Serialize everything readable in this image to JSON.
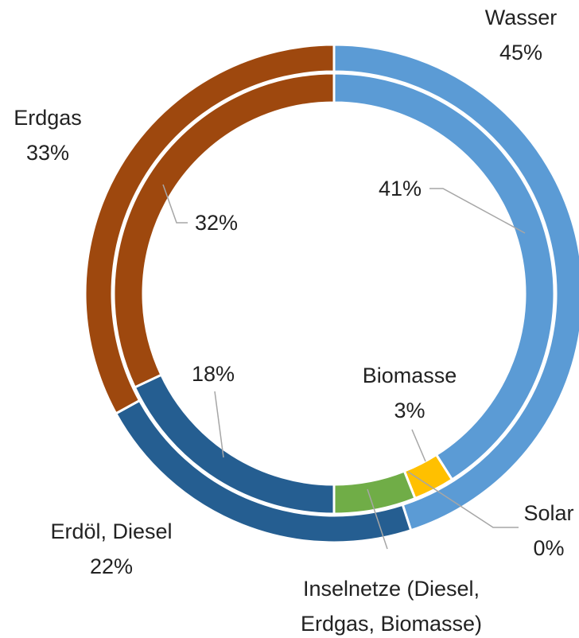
{
  "chart_data": {
    "type": "donut",
    "rings": [
      {
        "categories": [
          "Wasser",
          "Erdöl, Diesel",
          "Erdgas"
        ],
        "values": [
          45,
          22,
          33
        ],
        "value_labels": [
          "45%",
          "22%",
          "33%"
        ],
        "colors": [
          "#5b9bd5",
          "#255e91",
          "#9e480e"
        ]
      },
      {
        "categories": [
          null,
          "Biomasse",
          "Solar",
          "Inselnetze (Diesel, Erdgas, Biomasse)",
          null,
          null
        ],
        "values": [
          41,
          3,
          0,
          6,
          18,
          32
        ],
        "value_labels": [
          "41%",
          "3%",
          "0%",
          null,
          "18%",
          "32%"
        ],
        "colors": [
          "#5b9bd5",
          "#ffc000",
          "#4472c4",
          "#70ad47",
          "#255e91",
          "#9e480e"
        ]
      }
    ]
  }
}
